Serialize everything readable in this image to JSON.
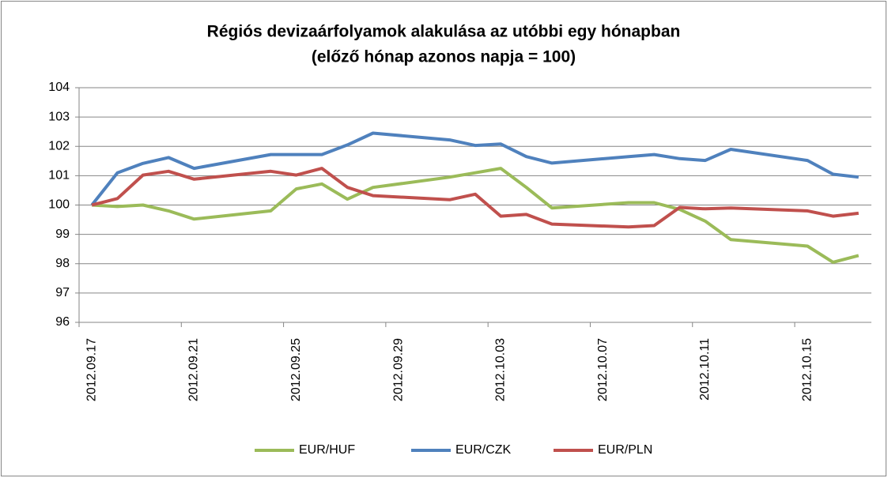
{
  "chart_data": {
    "type": "line",
    "title": "Régiós devizaárfolyamok alakulása az utóbbi egy hónapban",
    "subtitle": "(előző hónap azonos napja = 100)",
    "x": [
      "2012.09.17",
      "2012.09.18",
      "2012.09.19",
      "2012.09.20",
      "2012.09.21",
      "2012.09.24",
      "2012.09.25",
      "2012.09.26",
      "2012.09.27",
      "2012.09.28",
      "2012.10.01",
      "2012.10.02",
      "2012.10.03",
      "2012.10.04",
      "2012.10.05",
      "2012.10.08",
      "2012.10.09",
      "2012.10.10",
      "2012.10.11",
      "2012.10.12",
      "2012.10.15",
      "2012.10.16",
      "2012.10.17"
    ],
    "series": [
      {
        "name": "EUR/HUF",
        "color": "#9bbb59",
        "values": [
          100,
          99.95,
          100.0,
          99.8,
          99.52,
          99.8,
          100.55,
          100.72,
          100.2,
          100.6,
          100.95,
          101.1,
          101.25,
          100.6,
          99.9,
          100.08,
          100.08,
          99.85,
          99.45,
          98.82,
          98.6,
          98.05,
          98.28
        ]
      },
      {
        "name": "EUR/CZK",
        "color": "#4f81bd",
        "values": [
          100,
          101.1,
          101.42,
          101.62,
          101.25,
          101.72,
          101.72,
          101.72,
          102.05,
          102.45,
          102.22,
          102.03,
          102.08,
          101.65,
          101.43,
          101.65,
          101.72,
          101.58,
          101.52,
          101.9,
          101.52,
          101.05,
          100.95
        ]
      },
      {
        "name": "EUR/PLN",
        "color": "#c0504d",
        "values": [
          100,
          100.22,
          101.02,
          101.15,
          100.88,
          101.15,
          101.02,
          101.25,
          100.6,
          100.32,
          100.18,
          100.37,
          99.62,
          99.68,
          99.35,
          99.25,
          99.3,
          99.92,
          99.87,
          99.9,
          99.8,
          99.62,
          99.72
        ]
      }
    ],
    "xlim": [
      "2012.09.17",
      "2012.10.17"
    ],
    "xticks": [
      "2012.09.17",
      "2012.09.21",
      "2012.09.25",
      "2012.09.29",
      "2012.10.03",
      "2012.10.07",
      "2012.10.11",
      "2012.10.15"
    ],
    "ylim": [
      96,
      104
    ],
    "yticks": [
      96,
      97,
      98,
      99,
      100,
      101,
      102,
      103,
      104
    ],
    "grid": true,
    "legend": "bottom"
  }
}
